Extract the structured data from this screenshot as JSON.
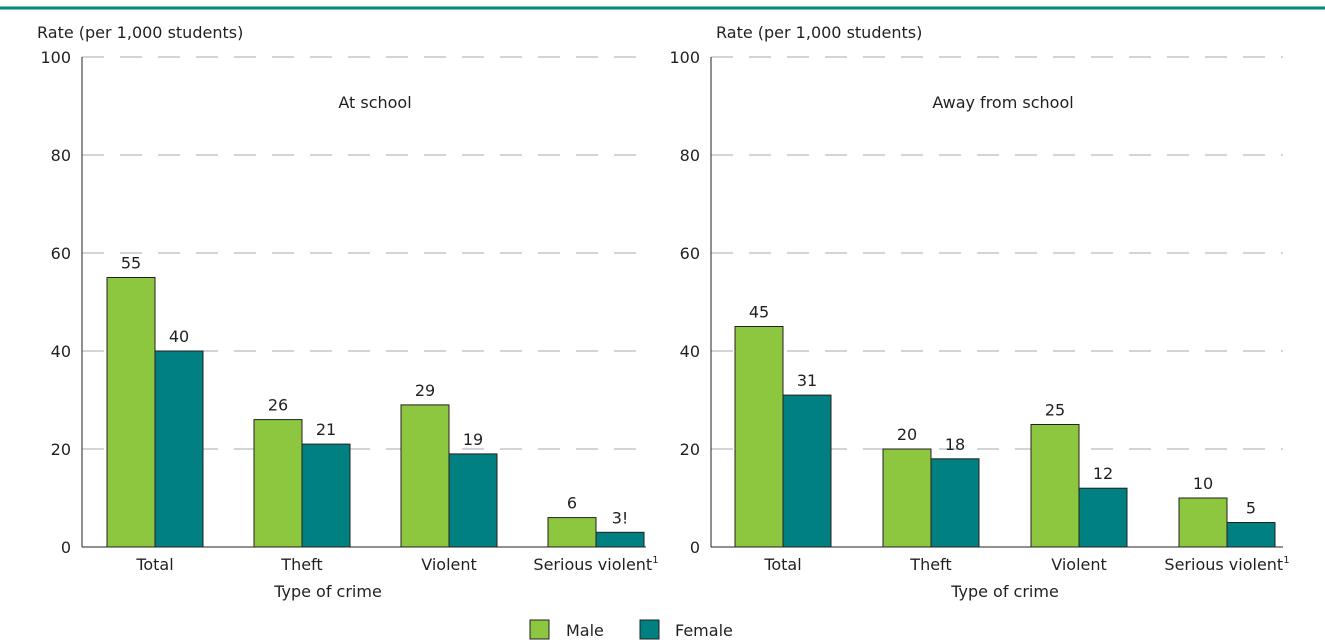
{
  "colors": {
    "male": "#8dc63f",
    "female": "#008080",
    "top_rule": "#00897b",
    "grid": "#a7a9ac",
    "axis": "#231f20"
  },
  "legend": {
    "male_label": "Male",
    "female_label": "Female",
    "placement": "bottom-center"
  },
  "chart_data": [
    {
      "type": "bar",
      "title": "At school",
      "ylabel": "Rate (per 1,000 students)",
      "xlabel": "Type of crime",
      "ylim": [
        0,
        100
      ],
      "yticks": [
        0,
        20,
        40,
        60,
        80,
        100
      ],
      "grid": true,
      "categories": [
        "Total",
        "Theft",
        "Violent",
        "Serious violent"
      ],
      "category_superscripts": [
        "",
        "",
        "",
        "1"
      ],
      "series": [
        {
          "name": "Male",
          "values": [
            55,
            26,
            29,
            6
          ],
          "value_labels": [
            "55",
            "26",
            "29",
            "6"
          ]
        },
        {
          "name": "Female",
          "values": [
            40,
            21,
            19,
            3
          ],
          "value_labels": [
            "40",
            "21",
            "19",
            "3!"
          ]
        }
      ]
    },
    {
      "type": "bar",
      "title": "Away from school",
      "ylabel": "Rate (per 1,000 students)",
      "xlabel": "Type of crime",
      "ylim": [
        0,
        100
      ],
      "yticks": [
        0,
        20,
        40,
        60,
        80,
        100
      ],
      "grid": true,
      "categories": [
        "Total",
        "Theft",
        "Violent",
        "Serious violent"
      ],
      "category_superscripts": [
        "",
        "",
        "",
        "1"
      ],
      "series": [
        {
          "name": "Male",
          "values": [
            45,
            20,
            25,
            10
          ],
          "value_labels": [
            "45",
            "20",
            "25",
            "10"
          ]
        },
        {
          "name": "Female",
          "values": [
            31,
            18,
            12,
            5
          ],
          "value_labels": [
            "31",
            "18",
            "12",
            "5"
          ]
        }
      ]
    }
  ]
}
